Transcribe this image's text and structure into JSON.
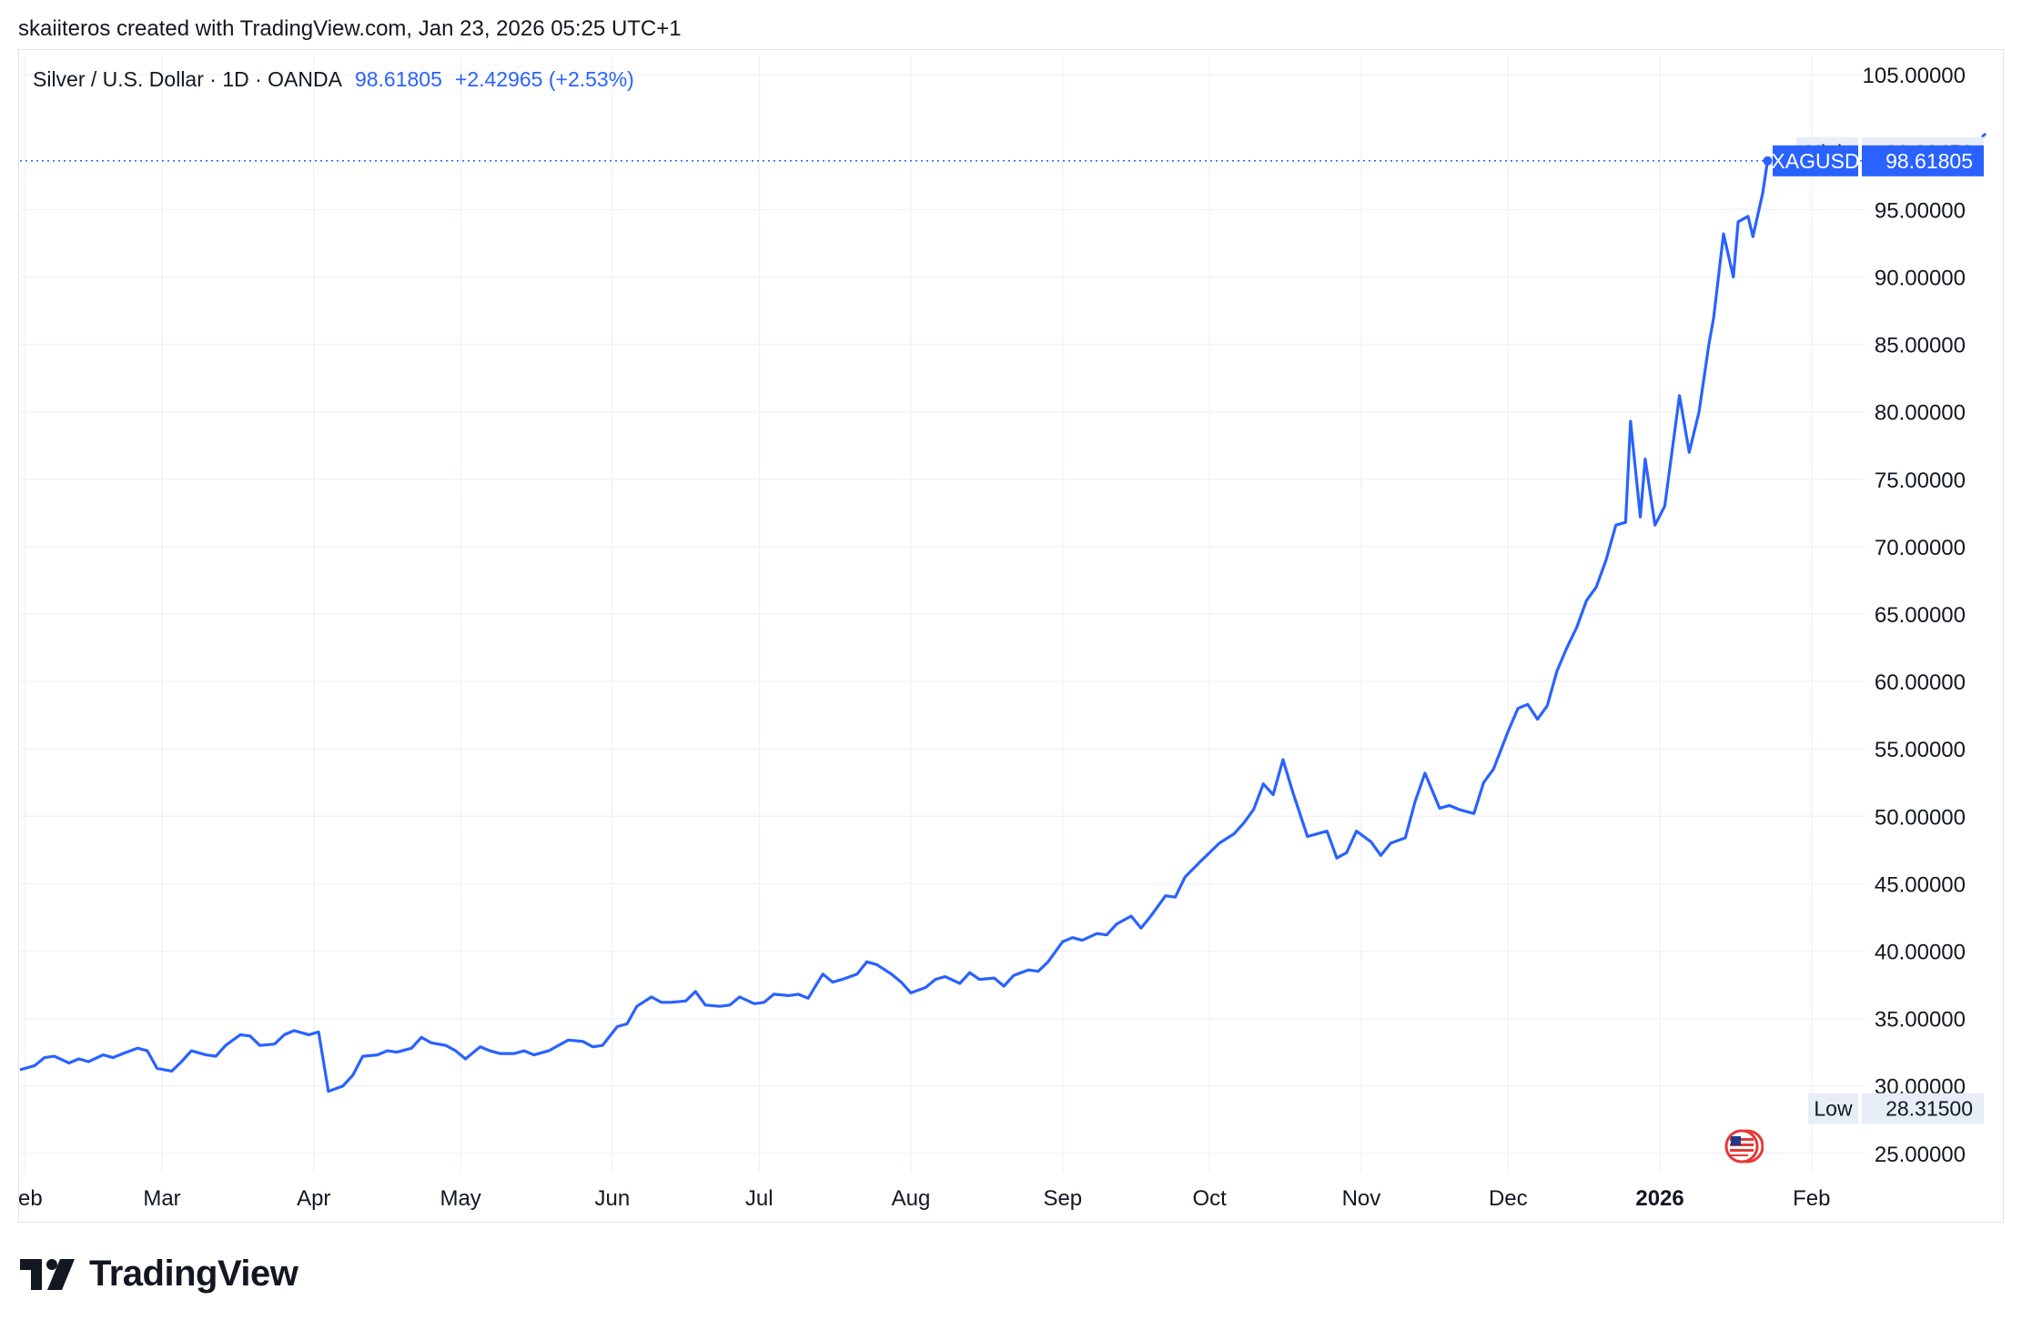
{
  "header": {
    "credit": "skaiiteros created with TradingView.com, Jan 23, 2026 05:25 UTC+1"
  },
  "legend": {
    "symbol": "Silver / U.S. Dollar · 1D · OANDA",
    "price": "98.61805",
    "change": "+2.42965 (+2.53%)"
  },
  "brand": {
    "name": "TradingView",
    "icon": "tradingview-logo-icon"
  },
  "events": {
    "icon": "us-flag-economic-event-icon"
  },
  "colors": {
    "line": "#2962ff",
    "grid": "#f0f3fa",
    "axis_text": "#131722",
    "tag_bg": "#e8eef8"
  },
  "chart_data": {
    "type": "line",
    "title": "Silver / U.S. Dollar · 1D · OANDA",
    "xlabel": "",
    "ylabel": "",
    "ylim": [
      23.5,
      106.5
    ],
    "xlim": [
      "2025-01-31",
      "2026-02-12"
    ],
    "y_ticks": [
      "105.00000",
      "95.00000",
      "90.00000",
      "85.00000",
      "80.00000",
      "75.00000",
      "70.00000",
      "65.00000",
      "60.00000",
      "55.00000",
      "50.00000",
      "45.00000",
      "40.00000",
      "35.00000",
      "30.00000",
      "25.00000"
    ],
    "x_ticks": [
      {
        "label": "eb",
        "date": "2025-02-01"
      },
      {
        "label": "Mar",
        "date": "2025-03-01"
      },
      {
        "label": "Apr",
        "date": "2025-04-01"
      },
      {
        "label": "May",
        "date": "2025-05-01"
      },
      {
        "label": "Jun",
        "date": "2025-06-01"
      },
      {
        "label": "Jul",
        "date": "2025-07-01"
      },
      {
        "label": "Aug",
        "date": "2025-08-01"
      },
      {
        "label": "Sep",
        "date": "2025-09-01"
      },
      {
        "label": "Oct",
        "date": "2025-10-01"
      },
      {
        "label": "Nov",
        "date": "2025-11-01"
      },
      {
        "label": "Dec",
        "date": "2025-12-01"
      },
      {
        "label": "2026",
        "date": "2026-01-01",
        "bold": true
      },
      {
        "label": "Feb",
        "date": "2026-02-01"
      }
    ],
    "grid": true,
    "series": [
      {
        "name": "XAGUSD",
        "color": "#2962ff",
        "points": [
          [
            "2025-01-31",
            31.2
          ],
          [
            "2025-02-03",
            31.5
          ],
          [
            "2025-02-05",
            32.1
          ],
          [
            "2025-02-07",
            32.2
          ],
          [
            "2025-02-10",
            31.7
          ],
          [
            "2025-02-12",
            32.0
          ],
          [
            "2025-02-14",
            31.8
          ],
          [
            "2025-02-17",
            32.3
          ],
          [
            "2025-02-19",
            32.1
          ],
          [
            "2025-02-21",
            32.4
          ],
          [
            "2025-02-24",
            32.8
          ],
          [
            "2025-02-26",
            32.6
          ],
          [
            "2025-02-28",
            31.3
          ],
          [
            "2025-03-03",
            31.1
          ],
          [
            "2025-03-05",
            31.8
          ],
          [
            "2025-03-07",
            32.6
          ],
          [
            "2025-03-10",
            32.3
          ],
          [
            "2025-03-12",
            32.2
          ],
          [
            "2025-03-14",
            33.0
          ],
          [
            "2025-03-17",
            33.8
          ],
          [
            "2025-03-19",
            33.7
          ],
          [
            "2025-03-21",
            33.0
          ],
          [
            "2025-03-24",
            33.1
          ],
          [
            "2025-03-26",
            33.8
          ],
          [
            "2025-03-28",
            34.1
          ],
          [
            "2025-03-31",
            33.8
          ],
          [
            "2025-04-02",
            34.0
          ],
          [
            "2025-04-04",
            29.6
          ],
          [
            "2025-04-07",
            30.0
          ],
          [
            "2025-04-09",
            30.8
          ],
          [
            "2025-04-11",
            32.2
          ],
          [
            "2025-04-14",
            32.3
          ],
          [
            "2025-04-16",
            32.6
          ],
          [
            "2025-04-18",
            32.5
          ],
          [
            "2025-04-21",
            32.8
          ],
          [
            "2025-04-23",
            33.6
          ],
          [
            "2025-04-25",
            33.2
          ],
          [
            "2025-04-28",
            33.0
          ],
          [
            "2025-04-30",
            32.6
          ],
          [
            "2025-05-02",
            32.0
          ],
          [
            "2025-05-05",
            32.9
          ],
          [
            "2025-05-07",
            32.6
          ],
          [
            "2025-05-09",
            32.4
          ],
          [
            "2025-05-12",
            32.4
          ],
          [
            "2025-05-14",
            32.6
          ],
          [
            "2025-05-16",
            32.3
          ],
          [
            "2025-05-19",
            32.6
          ],
          [
            "2025-05-21",
            33.0
          ],
          [
            "2025-05-23",
            33.4
          ],
          [
            "2025-05-26",
            33.3
          ],
          [
            "2025-05-28",
            32.9
          ],
          [
            "2025-05-30",
            33.0
          ],
          [
            "2025-06-02",
            34.4
          ],
          [
            "2025-06-04",
            34.6
          ],
          [
            "2025-06-06",
            35.9
          ],
          [
            "2025-06-09",
            36.6
          ],
          [
            "2025-06-11",
            36.2
          ],
          [
            "2025-06-13",
            36.2
          ],
          [
            "2025-06-16",
            36.3
          ],
          [
            "2025-06-18",
            37.0
          ],
          [
            "2025-06-20",
            36.0
          ],
          [
            "2025-06-23",
            35.9
          ],
          [
            "2025-06-25",
            36.0
          ],
          [
            "2025-06-27",
            36.6
          ],
          [
            "2025-06-30",
            36.1
          ],
          [
            "2025-07-02",
            36.2
          ],
          [
            "2025-07-04",
            36.8
          ],
          [
            "2025-07-07",
            36.7
          ],
          [
            "2025-07-09",
            36.8
          ],
          [
            "2025-07-11",
            36.5
          ],
          [
            "2025-07-14",
            38.3
          ],
          [
            "2025-07-16",
            37.7
          ],
          [
            "2025-07-18",
            37.9
          ],
          [
            "2025-07-21",
            38.3
          ],
          [
            "2025-07-23",
            39.2
          ],
          [
            "2025-07-25",
            39.0
          ],
          [
            "2025-07-28",
            38.3
          ],
          [
            "2025-07-30",
            37.7
          ],
          [
            "2025-08-01",
            36.9
          ],
          [
            "2025-08-04",
            37.3
          ],
          [
            "2025-08-06",
            37.9
          ],
          [
            "2025-08-08",
            38.1
          ],
          [
            "2025-08-11",
            37.6
          ],
          [
            "2025-08-13",
            38.4
          ],
          [
            "2025-08-15",
            37.9
          ],
          [
            "2025-08-18",
            38.0
          ],
          [
            "2025-08-20",
            37.4
          ],
          [
            "2025-08-22",
            38.2
          ],
          [
            "2025-08-25",
            38.6
          ],
          [
            "2025-08-27",
            38.5
          ],
          [
            "2025-08-29",
            39.2
          ],
          [
            "2025-09-01",
            40.7
          ],
          [
            "2025-09-03",
            41.0
          ],
          [
            "2025-09-05",
            40.8
          ],
          [
            "2025-09-08",
            41.3
          ],
          [
            "2025-09-10",
            41.2
          ],
          [
            "2025-09-12",
            42.0
          ],
          [
            "2025-09-15",
            42.6
          ],
          [
            "2025-09-17",
            41.7
          ],
          [
            "2025-09-19",
            42.6
          ],
          [
            "2025-09-22",
            44.1
          ],
          [
            "2025-09-24",
            44.0
          ],
          [
            "2025-09-26",
            45.5
          ],
          [
            "2025-09-29",
            46.6
          ],
          [
            "2025-10-01",
            47.3
          ],
          [
            "2025-10-03",
            48.0
          ],
          [
            "2025-10-06",
            48.7
          ],
          [
            "2025-10-08",
            49.5
          ],
          [
            "2025-10-10",
            50.5
          ],
          [
            "2025-10-12",
            52.4
          ],
          [
            "2025-10-14",
            51.6
          ],
          [
            "2025-10-16",
            54.2
          ],
          [
            "2025-10-18",
            51.8
          ],
          [
            "2025-10-21",
            48.5
          ],
          [
            "2025-10-23",
            48.7
          ],
          [
            "2025-10-25",
            48.9
          ],
          [
            "2025-10-27",
            46.9
          ],
          [
            "2025-10-29",
            47.3
          ],
          [
            "2025-10-31",
            48.9
          ],
          [
            "2025-11-03",
            48.1
          ],
          [
            "2025-11-05",
            47.1
          ],
          [
            "2025-11-07",
            48.0
          ],
          [
            "2025-11-10",
            48.4
          ],
          [
            "2025-11-12",
            51.1
          ],
          [
            "2025-11-14",
            53.2
          ],
          [
            "2025-11-17",
            50.6
          ],
          [
            "2025-11-19",
            50.8
          ],
          [
            "2025-11-21",
            50.5
          ],
          [
            "2025-11-24",
            50.2
          ],
          [
            "2025-11-26",
            52.5
          ],
          [
            "2025-11-28",
            53.5
          ],
          [
            "2025-12-01",
            56.3
          ],
          [
            "2025-12-03",
            58.0
          ],
          [
            "2025-12-05",
            58.3
          ],
          [
            "2025-12-07",
            57.2
          ],
          [
            "2025-12-09",
            58.2
          ],
          [
            "2025-12-11",
            60.8
          ],
          [
            "2025-12-13",
            62.5
          ],
          [
            "2025-12-15",
            64.0
          ],
          [
            "2025-12-17",
            66.0
          ],
          [
            "2025-12-19",
            67.0
          ],
          [
            "2025-12-21",
            69.0
          ],
          [
            "2025-12-23",
            71.6
          ],
          [
            "2025-12-25",
            71.8
          ],
          [
            "2025-12-26",
            79.3
          ],
          [
            "2025-12-28",
            72.2
          ],
          [
            "2025-12-29",
            76.5
          ],
          [
            "2025-12-31",
            71.6
          ],
          [
            "2026-01-02",
            73.0
          ],
          [
            "2026-01-05",
            81.2
          ],
          [
            "2026-01-07",
            77.0
          ],
          [
            "2026-01-09",
            80.0
          ],
          [
            "2026-01-11",
            85.0
          ],
          [
            "2026-01-12",
            87.0
          ],
          [
            "2026-01-14",
            93.2
          ],
          [
            "2026-01-16",
            90.0
          ],
          [
            "2026-01-17",
            94.1
          ],
          [
            "2026-01-19",
            94.5
          ],
          [
            "2026-01-20",
            93.0
          ],
          [
            "2026-01-22",
            96.2
          ],
          [
            "2026-01-23",
            98.61805
          ]
        ]
      }
    ],
    "last_price": {
      "label": "XAGUSD",
      "value": "98.61805",
      "y": 98.61805
    },
    "high": {
      "label": "High",
      "value": "99.23450",
      "y": 99.2345
    },
    "low": {
      "label": "Low",
      "value": "28.31500",
      "y": 28.315
    },
    "legend_placement": "none"
  }
}
